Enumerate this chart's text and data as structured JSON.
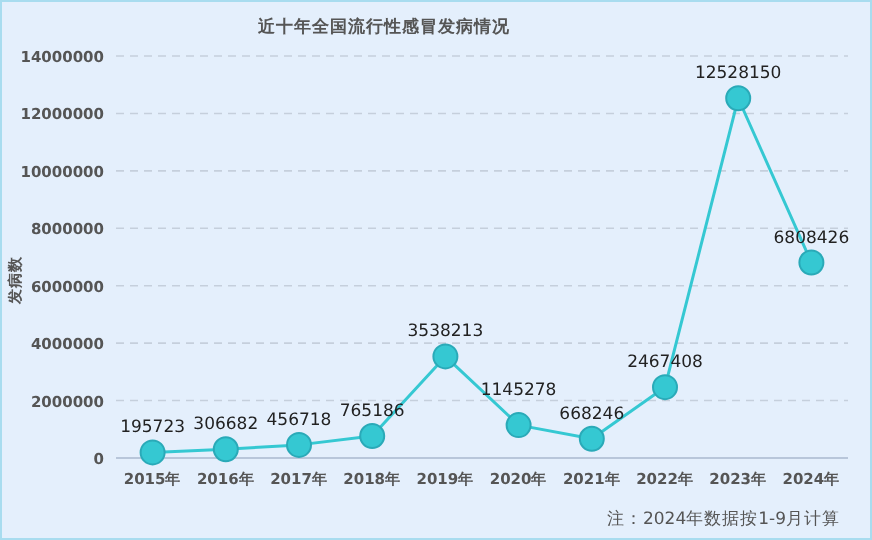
{
  "chart_data": {
    "type": "line",
    "title": "近十年全国流行性感冒发病情况",
    "ylabel": "发病数",
    "categories": [
      "2015年",
      "2016年",
      "2017年",
      "2018年",
      "2019年",
      "2020年",
      "2021年",
      "2022年",
      "2023年",
      "2024年"
    ],
    "values": [
      195723,
      306682,
      456718,
      765186,
      3538213,
      1145278,
      668246,
      2467408,
      12528150,
      6808426
    ],
    "color": "#35c8d2",
    "ylim": [
      0,
      14000000
    ],
    "yticks": [
      0,
      2000000,
      4000000,
      6000000,
      8000000,
      10000000,
      12000000,
      14000000
    ],
    "grid": "y",
    "data_labels": true,
    "marker": "circle",
    "annotations": [
      "注：2024年数据按1-9月计算"
    ]
  }
}
